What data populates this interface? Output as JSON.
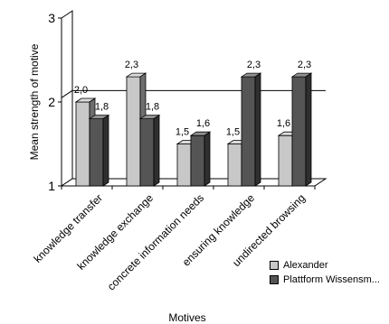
{
  "chart_data": {
    "type": "bar",
    "style": "3d",
    "title": "",
    "xlabel": "Motives",
    "ylabel": "Mean strength of motive",
    "ylim": [
      1,
      3
    ],
    "yticks": [
      "1",
      "2",
      "3"
    ],
    "grid": false,
    "reference_line": 2.05,
    "legend_position": "bottom-right",
    "categories": [
      "knowledge transfer",
      "knowledge exchange",
      "concrete information needs",
      "ensuring knowledge",
      "undirected browsing"
    ],
    "series": [
      {
        "name": "Alexander",
        "values": [
          2.0,
          2.3,
          1.5,
          1.5,
          1.6
        ],
        "labels": [
          "2,0",
          "2,3",
          "1,5",
          "1,5",
          "1,6"
        ],
        "color": "#c8c8c8"
      },
      {
        "name": "Plattform Wissensm...",
        "values": [
          1.8,
          1.8,
          1.6,
          2.3,
          2.3
        ],
        "labels": [
          "1,8",
          "1,8",
          "1,6",
          "2,3",
          "2,3"
        ],
        "color": "#555555"
      }
    ]
  }
}
